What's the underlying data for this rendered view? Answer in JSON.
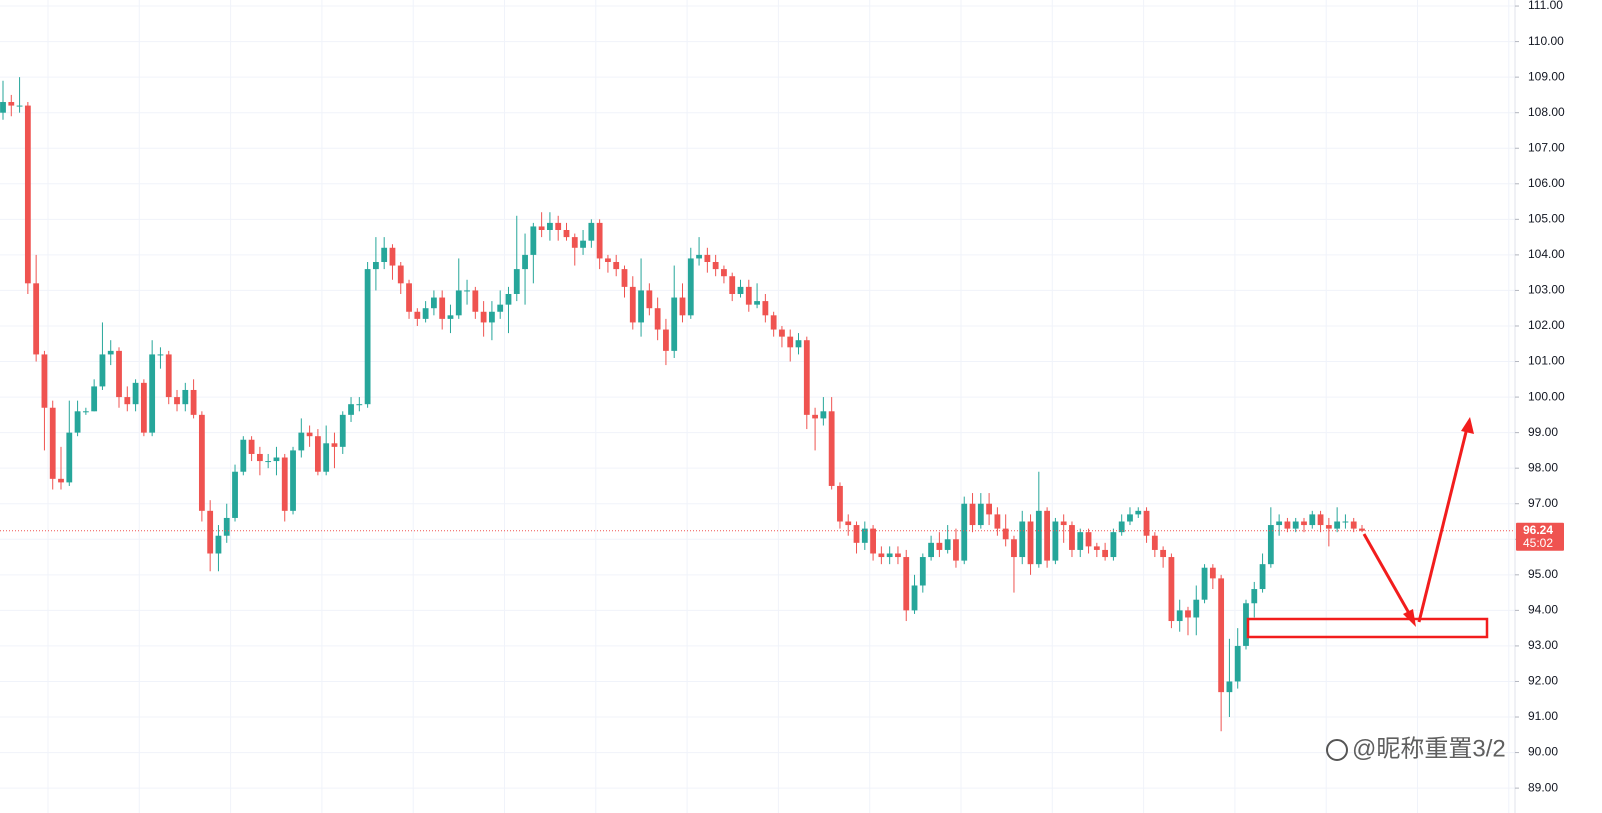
{
  "chart_data": {
    "type": "candlestick",
    "ylim": [
      88.3,
      111.17
    ],
    "yticks": [
      {
        "value": 89,
        "label": "89.00"
      },
      {
        "value": 90,
        "label": "90.00"
      },
      {
        "value": 91,
        "label": "91.00"
      },
      {
        "value": 92,
        "label": "92.00"
      },
      {
        "value": 93,
        "label": "93.00"
      },
      {
        "value": 94,
        "label": "94.00"
      },
      {
        "value": 95,
        "label": "95.00"
      },
      {
        "value": 96,
        "label": "96.00"
      },
      {
        "value": 97,
        "label": "97.00"
      },
      {
        "value": 98,
        "label": "98.00"
      },
      {
        "value": 99,
        "label": "99.00"
      },
      {
        "value": 100,
        "label": "100.00"
      },
      {
        "value": 101,
        "label": "101.00"
      },
      {
        "value": 102,
        "label": "102.00"
      },
      {
        "value": 103,
        "label": "103.00"
      },
      {
        "value": 104,
        "label": "104.00"
      },
      {
        "value": 105,
        "label": "105.00"
      },
      {
        "value": 106,
        "label": "106.00"
      },
      {
        "value": 107,
        "label": "107.00"
      },
      {
        "value": 108,
        "label": "108.00"
      },
      {
        "value": 109,
        "label": "109.00"
      },
      {
        "value": 110,
        "label": "110.00"
      },
      {
        "value": 111,
        "label": "111.00"
      }
    ],
    "grid": true,
    "up_color": "#26a69a",
    "down_color": "#ef5350",
    "current_price": {
      "value": 96.24,
      "label": "96.24"
    },
    "countdown": "45:02",
    "watermark": "@昵称重置3/2",
    "candles": [
      [
        108.0,
        108.9,
        107.8,
        108.3
      ],
      [
        108.3,
        108.5,
        107.9,
        108.2
      ],
      [
        108.2,
        109.0,
        108.0,
        108.2
      ],
      [
        108.2,
        108.3,
        102.9,
        103.2
      ],
      [
        103.2,
        104.0,
        101.0,
        101.2
      ],
      [
        101.2,
        101.3,
        98.5,
        99.7
      ],
      [
        99.7,
        99.9,
        97.4,
        97.7
      ],
      [
        97.7,
        98.6,
        97.4,
        97.6
      ],
      [
        97.6,
        99.9,
        97.5,
        99.0
      ],
      [
        99.0,
        99.9,
        98.9,
        99.6
      ],
      [
        99.6,
        99.7,
        99.5,
        99.6
      ],
      [
        99.6,
        100.5,
        99.6,
        100.3
      ],
      [
        100.3,
        102.1,
        100.2,
        101.2
      ],
      [
        101.2,
        101.6,
        100.9,
        101.3
      ],
      [
        101.3,
        101.4,
        99.7,
        100.0
      ],
      [
        100.0,
        100.3,
        99.6,
        99.8
      ],
      [
        99.8,
        100.5,
        99.6,
        100.4
      ],
      [
        100.4,
        100.5,
        98.9,
        99.0
      ],
      [
        99.0,
        101.6,
        98.9,
        101.2
      ],
      [
        101.2,
        101.4,
        100.8,
        101.2
      ],
      [
        101.2,
        101.3,
        99.8,
        100.0
      ],
      [
        100.0,
        100.2,
        99.6,
        99.8
      ],
      [
        99.8,
        100.4,
        99.6,
        100.2
      ],
      [
        100.2,
        100.5,
        99.4,
        99.5
      ],
      [
        99.5,
        99.6,
        96.5,
        96.8
      ],
      [
        96.8,
        97.1,
        95.1,
        95.6
      ],
      [
        95.6,
        96.4,
        95.1,
        96.1
      ],
      [
        96.1,
        97.0,
        95.9,
        96.6
      ],
      [
        96.6,
        98.1,
        96.5,
        97.9
      ],
      [
        97.9,
        98.9,
        97.8,
        98.8
      ],
      [
        98.8,
        98.9,
        98.2,
        98.4
      ],
      [
        98.4,
        98.6,
        97.8,
        98.2
      ],
      [
        98.2,
        98.4,
        98.0,
        98.2
      ],
      [
        98.2,
        98.6,
        97.8,
        98.3
      ],
      [
        98.3,
        98.4,
        96.5,
        96.8
      ],
      [
        96.8,
        98.6,
        96.7,
        98.5
      ],
      [
        98.5,
        99.4,
        98.3,
        99.0
      ],
      [
        99.0,
        99.2,
        98.6,
        98.9
      ],
      [
        98.9,
        99.1,
        97.8,
        97.9
      ],
      [
        97.9,
        99.2,
        97.8,
        98.7
      ],
      [
        98.7,
        99.0,
        98.0,
        98.6
      ],
      [
        98.6,
        99.6,
        98.4,
        99.5
      ],
      [
        99.5,
        100.0,
        99.3,
        99.8
      ],
      [
        99.8,
        100.0,
        99.6,
        99.8
      ],
      [
        99.8,
        103.8,
        99.7,
        103.6
      ],
      [
        103.6,
        104.5,
        103.0,
        103.8
      ],
      [
        103.8,
        104.5,
        103.6,
        104.2
      ],
      [
        104.2,
        104.3,
        103.3,
        103.7
      ],
      [
        103.7,
        103.8,
        102.9,
        103.2
      ],
      [
        103.2,
        103.3,
        102.2,
        102.4
      ],
      [
        102.4,
        102.5,
        102.0,
        102.2
      ],
      [
        102.2,
        102.7,
        102.1,
        102.5
      ],
      [
        102.5,
        103.0,
        102.3,
        102.8
      ],
      [
        102.8,
        103.0,
        101.9,
        102.2
      ],
      [
        102.2,
        102.6,
        101.8,
        102.3
      ],
      [
        102.3,
        103.9,
        102.2,
        103.0
      ],
      [
        103.0,
        103.3,
        102.6,
        103.0
      ],
      [
        103.0,
        103.1,
        102.2,
        102.4
      ],
      [
        102.4,
        102.7,
        101.7,
        102.1
      ],
      [
        102.1,
        102.7,
        101.6,
        102.4
      ],
      [
        102.4,
        103.0,
        102.2,
        102.6
      ],
      [
        102.6,
        103.1,
        101.8,
        102.9
      ],
      [
        102.9,
        105.1,
        102.7,
        103.6
      ],
      [
        103.6,
        104.6,
        102.6,
        104.0
      ],
      [
        104.0,
        104.9,
        103.2,
        104.8
      ],
      [
        104.8,
        105.2,
        104.5,
        104.7
      ],
      [
        104.7,
        105.2,
        104.4,
        104.9
      ],
      [
        104.9,
        105.1,
        104.4,
        104.7
      ],
      [
        104.7,
        104.9,
        104.4,
        104.5
      ],
      [
        104.5,
        104.6,
        103.7,
        104.2
      ],
      [
        104.2,
        104.7,
        104.0,
        104.4
      ],
      [
        104.4,
        105.0,
        104.2,
        104.9
      ],
      [
        104.9,
        105.0,
        103.6,
        103.9
      ],
      [
        103.9,
        104.0,
        103.5,
        103.8
      ],
      [
        103.8,
        104.0,
        103.4,
        103.6
      ],
      [
        103.6,
        103.7,
        102.8,
        103.1
      ],
      [
        103.1,
        103.4,
        101.9,
        102.1
      ],
      [
        102.1,
        103.9,
        101.7,
        103.0
      ],
      [
        103.0,
        103.2,
        102.3,
        102.5
      ],
      [
        102.5,
        102.8,
        101.6,
        101.9
      ],
      [
        101.9,
        102.2,
        100.9,
        101.3
      ],
      [
        101.3,
        103.7,
        101.1,
        102.8
      ],
      [
        102.8,
        103.2,
        102.1,
        102.3
      ],
      [
        102.3,
        104.2,
        102.2,
        103.9
      ],
      [
        103.9,
        104.5,
        103.7,
        104.0
      ],
      [
        104.0,
        104.2,
        103.5,
        103.8
      ],
      [
        103.8,
        104.0,
        103.4,
        103.6
      ],
      [
        103.6,
        103.7,
        103.2,
        103.4
      ],
      [
        103.4,
        103.5,
        102.7,
        102.9
      ],
      [
        102.9,
        103.3,
        102.8,
        103.1
      ],
      [
        103.1,
        103.3,
        102.4,
        102.6
      ],
      [
        102.6,
        103.2,
        102.5,
        102.7
      ],
      [
        102.7,
        102.9,
        102.1,
        102.3
      ],
      [
        102.3,
        102.4,
        101.7,
        101.9
      ],
      [
        101.9,
        102.0,
        101.4,
        101.7
      ],
      [
        101.7,
        101.9,
        101.0,
        101.4
      ],
      [
        101.4,
        101.8,
        101.2,
        101.6
      ],
      [
        101.6,
        101.7,
        99.1,
        99.5
      ],
      [
        99.5,
        99.7,
        98.5,
        99.4
      ],
      [
        99.4,
        100.0,
        99.2,
        99.6
      ],
      [
        99.6,
        100.0,
        97.4,
        97.5
      ],
      [
        97.5,
        97.6,
        96.3,
        96.5
      ],
      [
        96.5,
        96.7,
        96.1,
        96.4
      ],
      [
        96.4,
        96.5,
        95.6,
        95.9
      ],
      [
        95.9,
        96.5,
        95.7,
        96.3
      ],
      [
        96.3,
        96.4,
        95.4,
        95.6
      ],
      [
        95.6,
        95.8,
        95.3,
        95.5
      ],
      [
        95.5,
        95.8,
        95.3,
        95.6
      ],
      [
        95.6,
        95.8,
        95.3,
        95.5
      ],
      [
        95.5,
        95.7,
        93.7,
        94.0
      ],
      [
        94.0,
        95.0,
        93.9,
        94.7
      ],
      [
        94.7,
        95.6,
        94.5,
        95.5
      ],
      [
        95.5,
        96.1,
        95.4,
        95.9
      ],
      [
        95.9,
        96.2,
        95.5,
        95.7
      ],
      [
        95.7,
        96.4,
        95.6,
        96.0
      ],
      [
        96.0,
        96.3,
        95.2,
        95.4
      ],
      [
        95.4,
        97.2,
        95.3,
        97.0
      ],
      [
        97.0,
        97.3,
        96.2,
        96.4
      ],
      [
        96.4,
        97.3,
        96.3,
        97.0
      ],
      [
        97.0,
        97.3,
        96.4,
        96.7
      ],
      [
        96.7,
        96.9,
        96.1,
        96.3
      ],
      [
        96.3,
        96.7,
        95.8,
        96.0
      ],
      [
        96.0,
        96.1,
        94.5,
        95.5
      ],
      [
        95.5,
        96.8,
        95.3,
        96.5
      ],
      [
        96.5,
        96.7,
        95.0,
        95.3
      ],
      [
        95.3,
        97.9,
        95.2,
        96.8
      ],
      [
        96.8,
        96.9,
        95.2,
        95.4
      ],
      [
        95.4,
        96.6,
        95.3,
        96.5
      ],
      [
        96.5,
        96.7,
        95.9,
        96.4
      ],
      [
        96.4,
        96.5,
        95.5,
        95.7
      ],
      [
        95.7,
        96.3,
        95.5,
        96.2
      ],
      [
        96.2,
        96.3,
        95.6,
        95.8
      ],
      [
        95.8,
        95.9,
        95.5,
        95.7
      ],
      [
        95.7,
        95.9,
        95.4,
        95.5
      ],
      [
        95.5,
        96.3,
        95.4,
        96.2
      ],
      [
        96.2,
        96.7,
        96.1,
        96.5
      ],
      [
        96.5,
        96.9,
        96.4,
        96.7
      ],
      [
        96.7,
        96.9,
        96.6,
        96.8
      ],
      [
        96.8,
        96.9,
        95.9,
        96.1
      ],
      [
        96.1,
        96.2,
        95.5,
        95.7
      ],
      [
        95.7,
        95.8,
        95.2,
        95.5
      ],
      [
        95.5,
        95.6,
        93.5,
        93.7
      ],
      [
        93.7,
        94.3,
        93.4,
        94.0
      ],
      [
        94.0,
        94.1,
        93.3,
        93.8
      ],
      [
        93.8,
        94.7,
        93.3,
        94.3
      ],
      [
        94.3,
        95.3,
        94.2,
        95.2
      ],
      [
        95.2,
        95.3,
        94.6,
        94.9
      ],
      [
        94.9,
        95.0,
        90.6,
        91.7
      ],
      [
        91.7,
        93.2,
        91.0,
        92.0
      ],
      [
        92.0,
        93.5,
        91.8,
        93.0
      ],
      [
        93.0,
        94.3,
        92.9,
        94.2
      ],
      [
        94.2,
        94.8,
        93.8,
        94.6
      ],
      [
        94.6,
        95.6,
        94.5,
        95.3
      ],
      [
        95.3,
        96.9,
        95.2,
        96.4
      ],
      [
        96.4,
        96.7,
        96.1,
        96.5
      ],
      [
        96.5,
        96.6,
        96.2,
        96.3
      ],
      [
        96.3,
        96.6,
        96.2,
        96.5
      ],
      [
        96.5,
        96.6,
        96.2,
        96.4
      ],
      [
        96.4,
        96.8,
        96.3,
        96.7
      ],
      [
        96.7,
        96.8,
        96.2,
        96.4
      ],
      [
        96.4,
        96.6,
        95.8,
        96.3
      ],
      [
        96.3,
        96.9,
        96.2,
        96.5
      ],
      [
        96.5,
        96.7,
        96.3,
        96.5
      ],
      [
        96.5,
        96.6,
        96.2,
        96.3
      ],
      [
        96.3,
        96.4,
        96.2,
        96.24
      ]
    ]
  }
}
